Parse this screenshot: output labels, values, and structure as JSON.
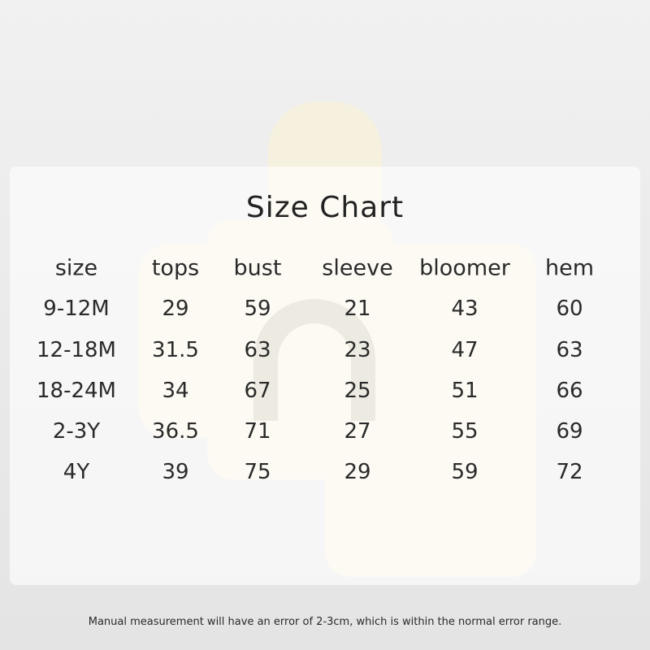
{
  "title": "Size Chart",
  "headers": [
    "size",
    "tops",
    "bust",
    "sleeve",
    "bloomer",
    "hem"
  ],
  "rows": [
    [
      "9-12M",
      "29",
      "59",
      "21",
      "43",
      "60"
    ],
    [
      "12-18M",
      "31.5",
      "63",
      "23",
      "47",
      "63"
    ],
    [
      "18-24M",
      "34",
      "67",
      "25",
      "51",
      "66"
    ],
    [
      "2-3Y",
      "36.5",
      "71",
      "27",
      "55",
      "69"
    ],
    [
      "4Y",
      "39",
      "75",
      "29",
      "59",
      "72"
    ]
  ],
  "note": "Manual measurement will have an error of 2-3cm, which is within the normal error range.",
  "colors": {
    "background": "#e9e9e9",
    "garment": "#f6f1df",
    "panel": "#ffffff",
    "text": "#2a2a2a"
  }
}
